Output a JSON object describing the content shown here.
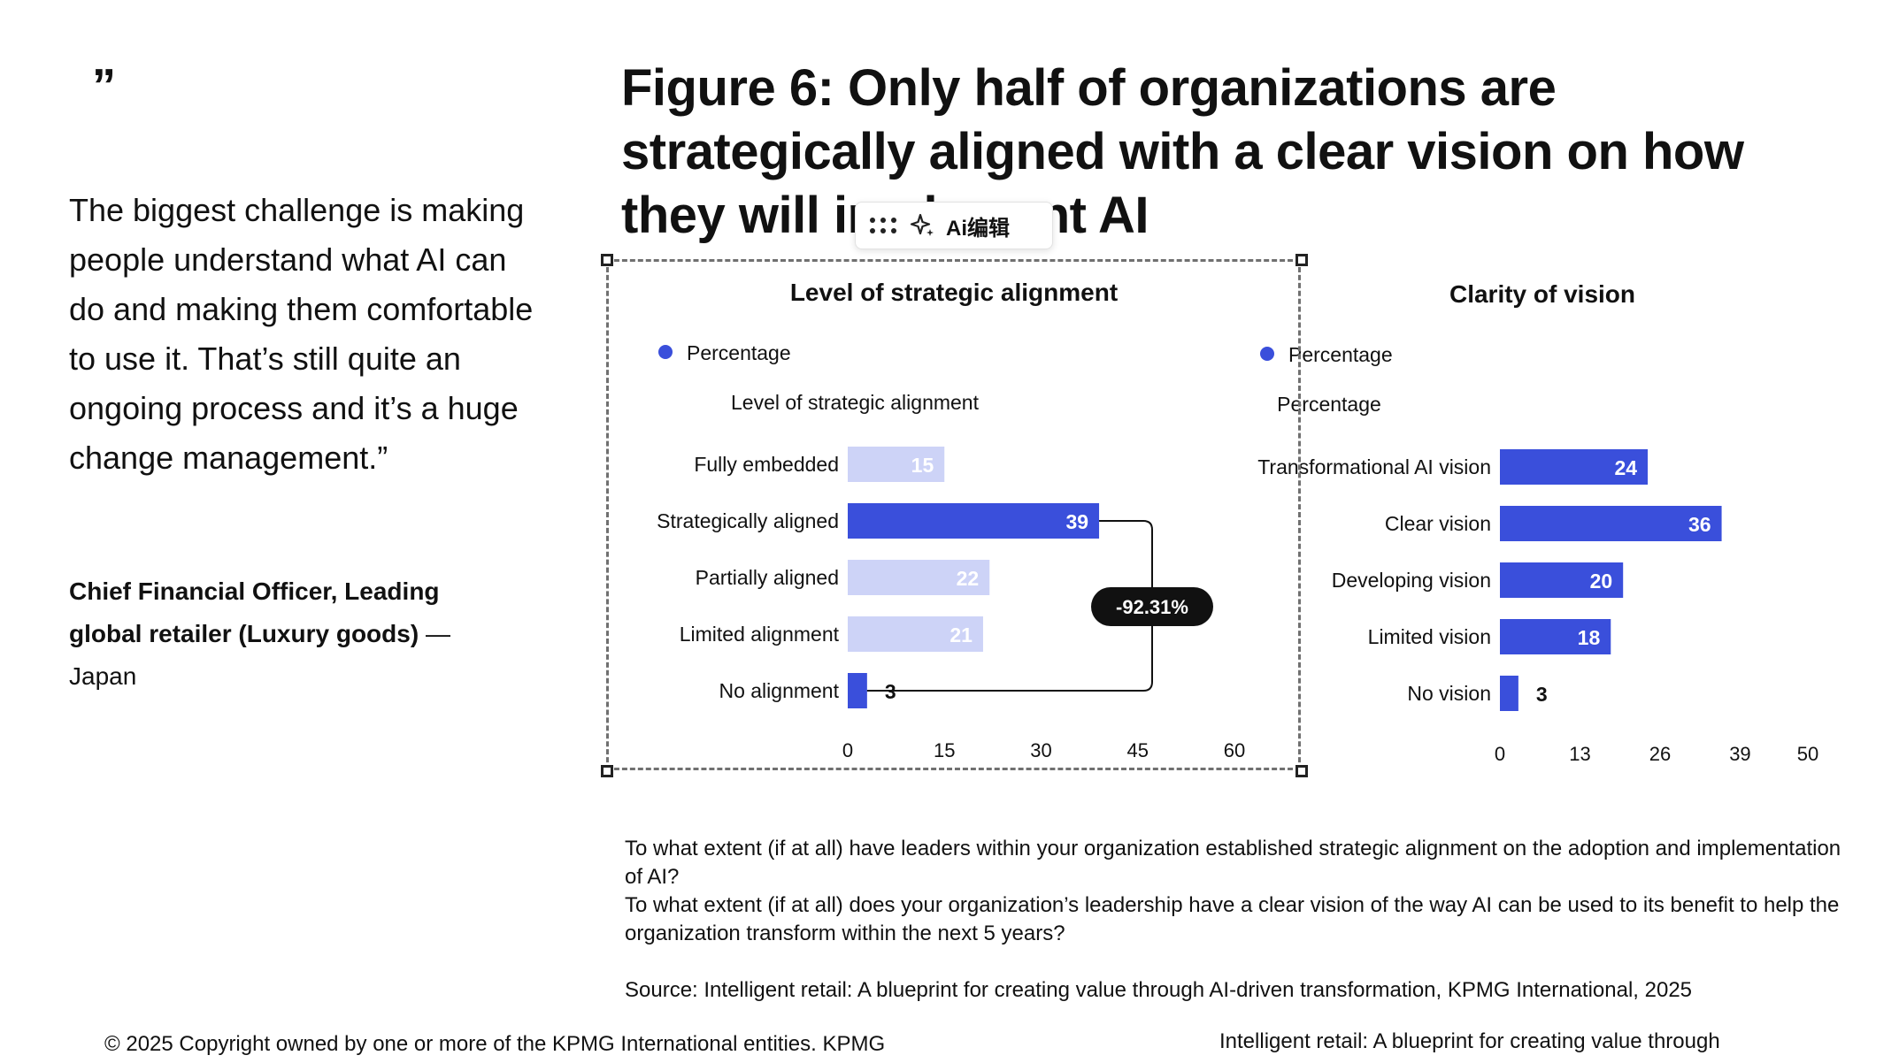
{
  "quote": {
    "mark": "”",
    "text": "The biggest challenge is making people understand what AI can do and making them comfortable to use it. That’s still quite an ongoing process and it’s a huge change management.”",
    "author_bold": "Chief Financial Officer, Leading global retailer (Luxury goods)",
    "author_rest": " — Japan"
  },
  "figure": {
    "title_line1": "Figure 6: Only half of organizations are",
    "title_line2": "strategically aligned with a clear vision on how",
    "title_line3": "they will implement AI"
  },
  "ai_toolbar": {
    "label": "Ai编辑",
    "icons": [
      "drag-handle-icon",
      "sparkle-icon"
    ]
  },
  "colors": {
    "accent": "#3a4fdb",
    "light": "#cdd3f7",
    "badge": "#111111"
  },
  "chart_data": [
    {
      "type": "bar",
      "orientation": "horizontal",
      "title": "Level of strategic alignment",
      "legend": "Percentage",
      "category_axis_label": "Level of strategic alignment",
      "categories": [
        "Fully embedded",
        "Strategically aligned",
        "Partially aligned",
        "Limited alignment",
        "No alignment"
      ],
      "values": [
        15,
        39,
        22,
        21,
        3
      ],
      "highlight": [
        false,
        true,
        false,
        false,
        true
      ],
      "xlim": [
        0,
        60
      ],
      "xticks": [
        0,
        15,
        30,
        45,
        60
      ],
      "annotation": {
        "text": "-92.31%",
        "from": "Strategically aligned",
        "to": "No alignment"
      }
    },
    {
      "type": "bar",
      "orientation": "horizontal",
      "title": "Clarity of vision",
      "legend": "Percentage",
      "category_axis_label": "Percentage",
      "categories": [
        "Transformational AI vision",
        "Clear vision",
        "Developing vision",
        "Limited vision",
        "No vision"
      ],
      "values": [
        24,
        36,
        20,
        18,
        3
      ],
      "xlim": [
        0,
        50
      ],
      "xticks": [
        0,
        13,
        26,
        39,
        50
      ]
    }
  ],
  "notes": {
    "q1": "To what extent (if at all) have leaders within your organization established strategic alignment on the adoption and implementation of AI?",
    "q2": "To what extent (if at all) does your organization’s leadership have a clear vision of the way AI can be used to its benefit to help the organization transform within the next 5 years?",
    "source": "Source: Intelligent retail: A blueprint for creating value through AI-driven transformation, KPMG International, 2025"
  },
  "footer": {
    "left": "© 2025 Copyright owned by one or more of the KPMG International entities. KPMG",
    "right": "Intelligent retail: A blueprint for creating value through"
  }
}
